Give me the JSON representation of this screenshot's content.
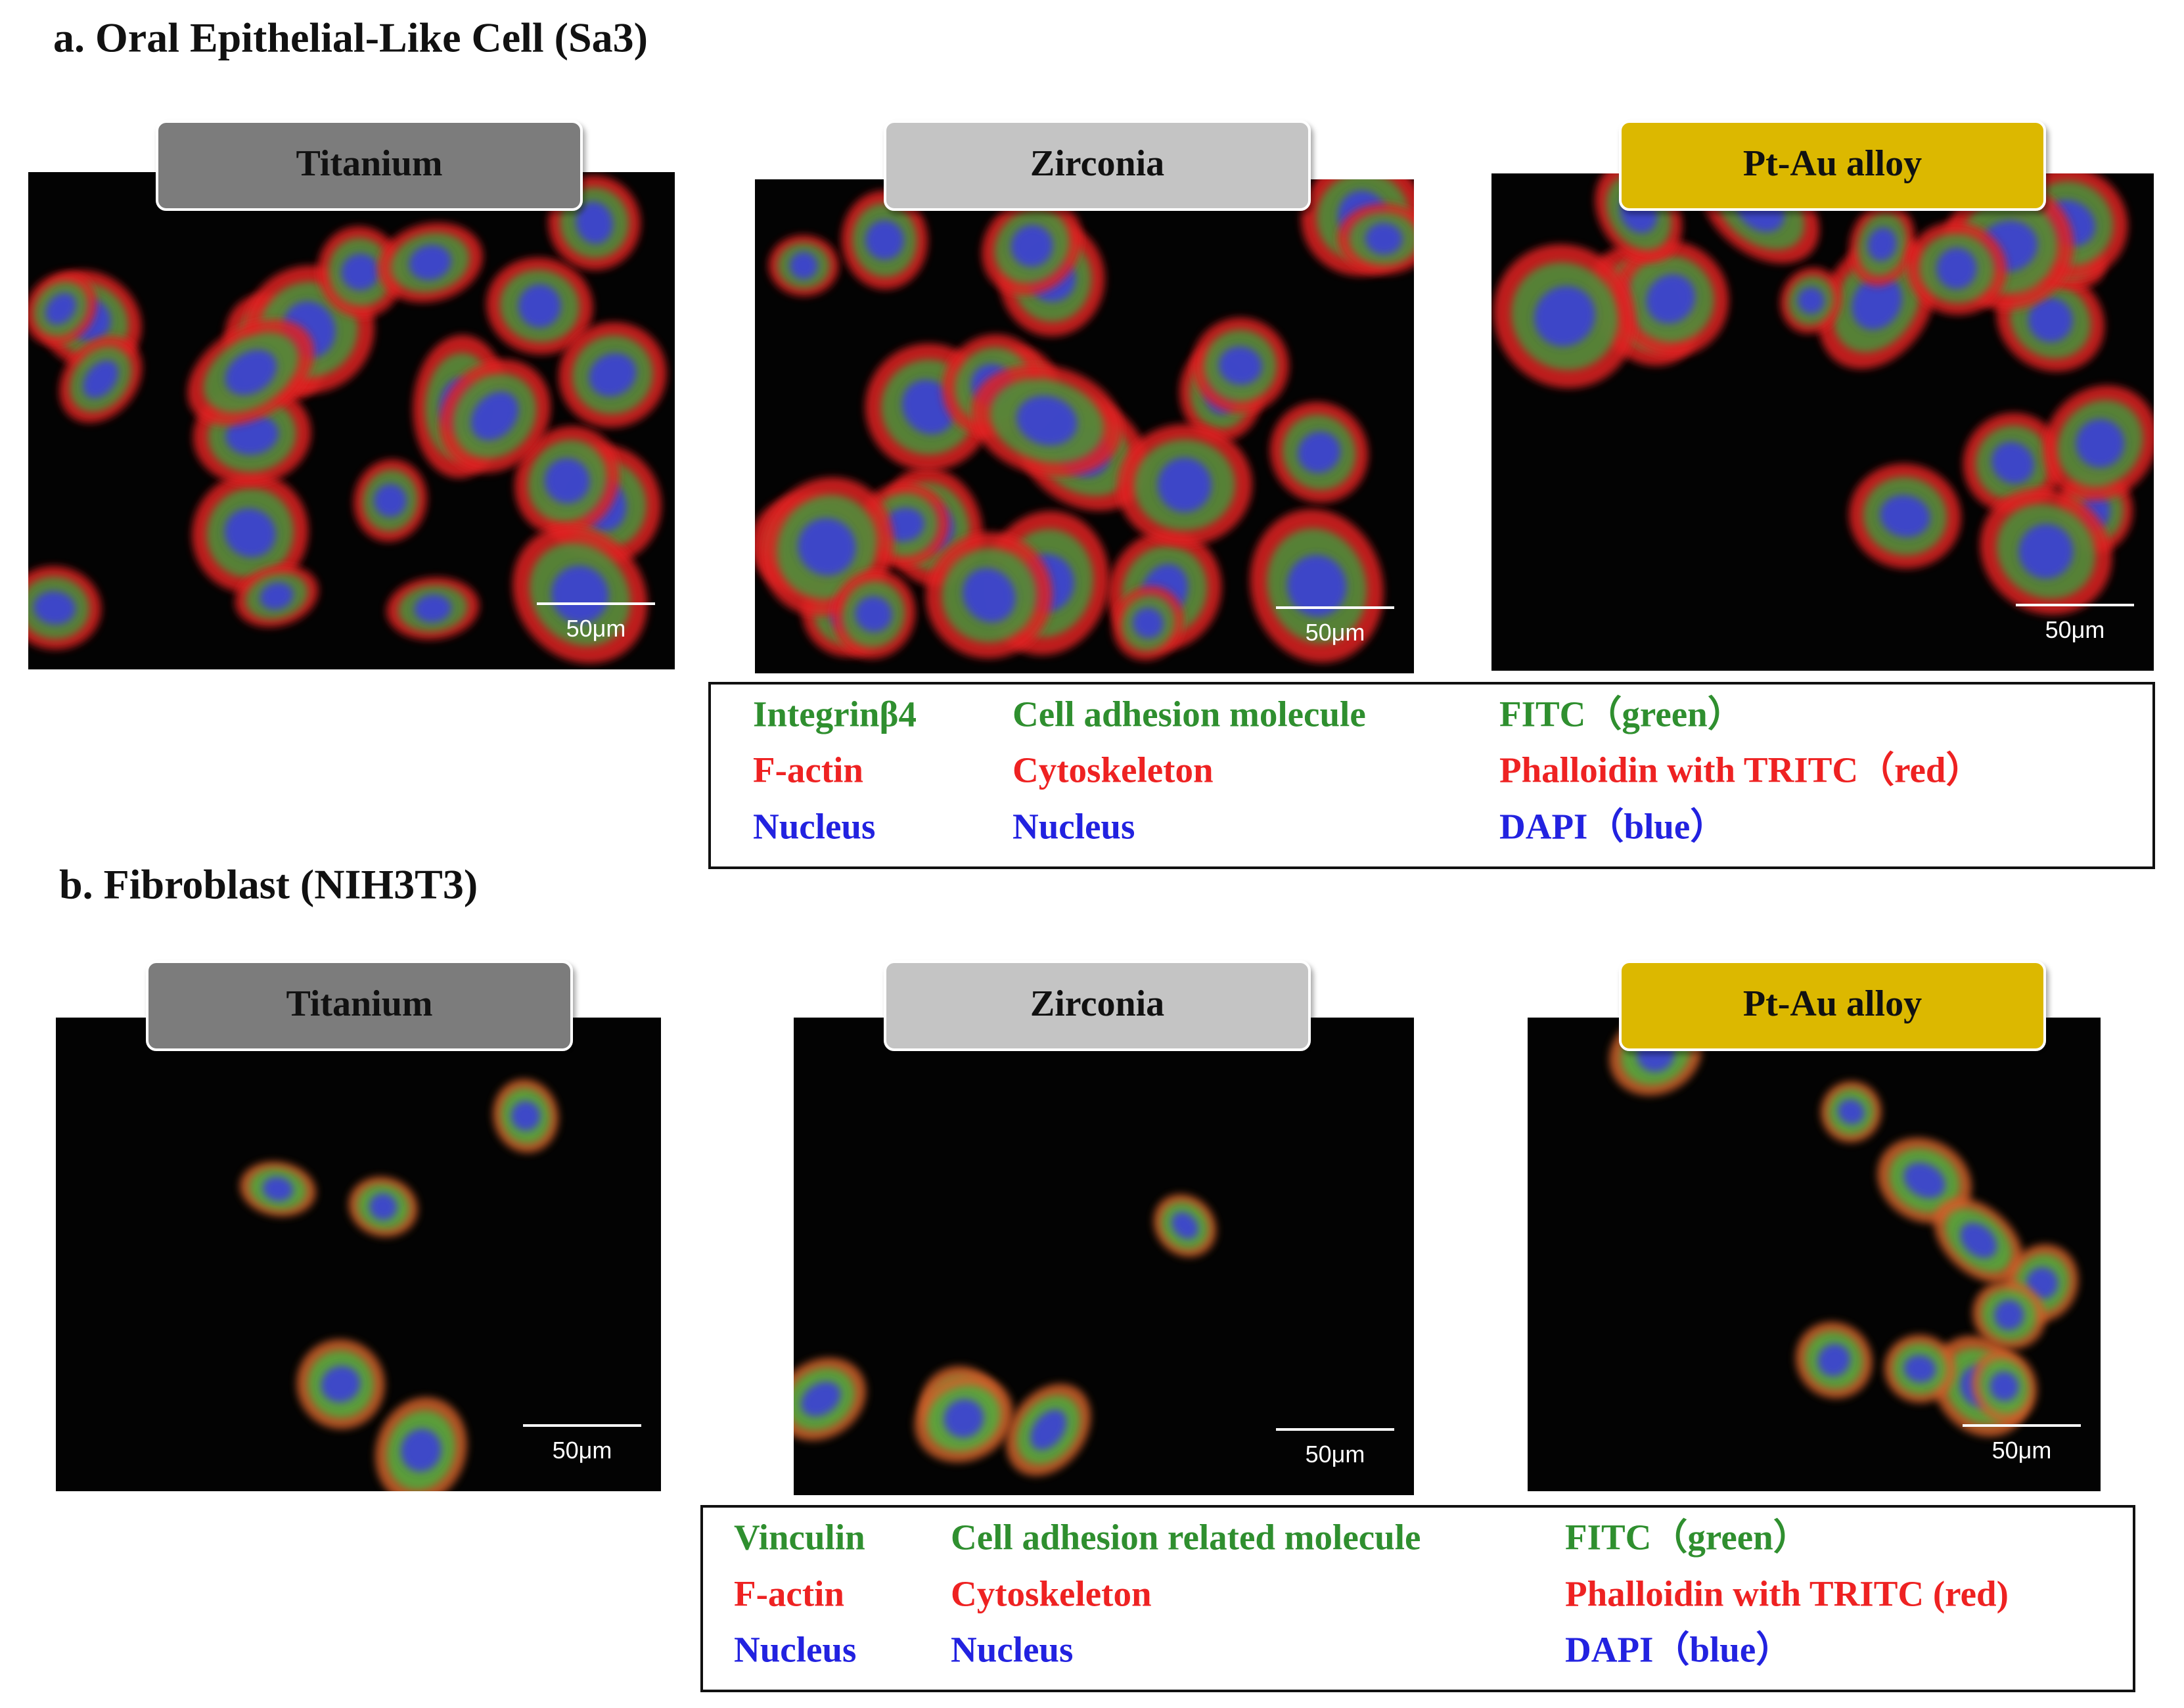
{
  "panels": [
    {
      "title": "a. Oral Epithelial-Like Cell (Sa3)",
      "images": [
        {
          "label": "Titanium",
          "scale_bar": "50μm"
        },
        {
          "label": "Zirconia",
          "scale_bar": "50μm"
        },
        {
          "label": "Pt-Au alloy",
          "scale_bar": "50μm"
        }
      ],
      "legend": {
        "rows": [
          [
            "Integrinβ4",
            "Cell adhesion molecule",
            "FITC（green）"
          ],
          [
            "F-actin",
            "Cytoskeleton",
            "Phalloidin with TRITC（red）"
          ],
          [
            "Nucleus",
            "Nucleus",
            "DAPI（blue）"
          ]
        ]
      }
    },
    {
      "title": "b. Fibroblast (NIH3T3)",
      "images": [
        {
          "label": "Titanium",
          "scale_bar": "50μm"
        },
        {
          "label": "Zirconia",
          "scale_bar": "50μm"
        },
        {
          "label": "Pt-Au alloy",
          "scale_bar": "50μm"
        }
      ],
      "legend": {
        "rows": [
          [
            "Vinculin",
            "Cell adhesion related molecule",
            "FITC（green）"
          ],
          [
            "F-actin",
            "Cytoskeleton",
            "Phalloidin with TRITC (red)"
          ],
          [
            "Nucleus",
            "Nucleus",
            "DAPI（blue）"
          ]
        ]
      }
    }
  ]
}
